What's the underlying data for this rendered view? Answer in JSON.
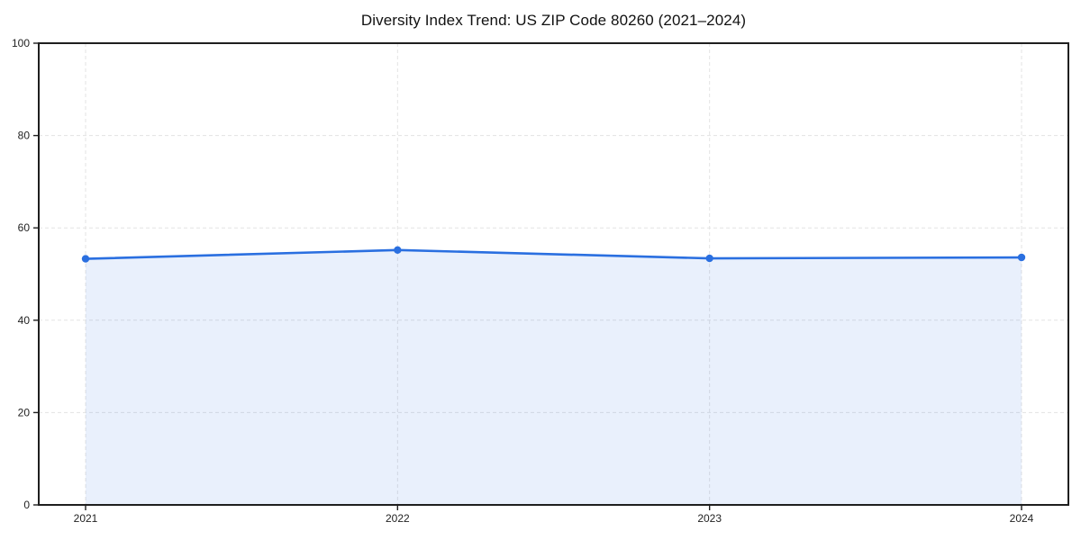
{
  "chart_data": {
    "type": "area",
    "title": "Diversity Index Trend: US ZIP Code 80260 (2021–2024)",
    "categories": [
      "2021",
      "2022",
      "2023",
      "2024"
    ],
    "x": [
      2021,
      2022,
      2023,
      2024
    ],
    "series": [
      {
        "name": "Diversity Index",
        "values": [
          53.3,
          55.2,
          53.4,
          53.6
        ]
      }
    ],
    "xlabel": "",
    "ylabel": "",
    "ylim": [
      0,
      100
    ],
    "yticks": [
      0,
      20,
      40,
      60,
      80,
      100
    ],
    "grid": true,
    "grid_style": "dashed",
    "legend_position": "none",
    "marker": "circle",
    "colors": {
      "line": "#2a6fe0",
      "marker": "#2a6fe0",
      "fill": "rgba(42,111,224,0.10)",
      "grid": "#e3e3e3",
      "axis": "#1f1f1f",
      "tick_label": "#222222",
      "title": "#111111",
      "background": "#ffffff"
    }
  }
}
